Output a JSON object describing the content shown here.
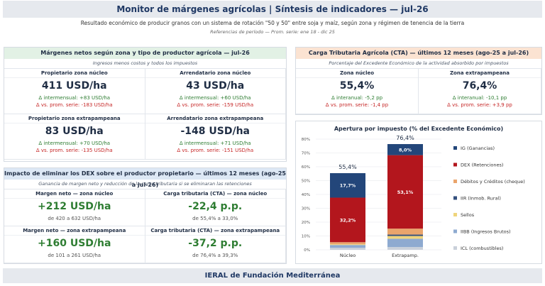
{
  "header": {
    "title": "Monitor de márgenes agrícolas  |  Síntesis de indicadores  —  jul-26",
    "subtitle": "Resultado económico de producir granos con un sistema de rotación \"50 y 50\" entre soja y maíz, según zona y régimen de tenencia de la tierra",
    "reference": "Referencias de período  —  Prom. serie: ene 18 - dic 25"
  },
  "margins": {
    "title": "Márgenes netos según zona y tipo de productor agrícola  —  jul-26",
    "subtitle": "Ingresos menos costos y todos los impuestos",
    "cells": [
      {
        "label": "Propietario zona núcleo",
        "value": "411 USD/ha",
        "delta_month": "Δ intermensual: +83 USD/ha",
        "delta_series": "Δ vs. prom. serie: -183 USD/ha"
      },
      {
        "label": "Arrendatario zona núcleo",
        "value": "43 USD/ha",
        "delta_month": "Δ intermensual: +60 USD/ha",
        "delta_series": "Δ vs. prom. serie: -159 USD/ha"
      },
      {
        "label": "Propietario zona extrapampeana",
        "value": "83 USD/ha",
        "delta_month": "Δ intermensual: +70 USD/ha",
        "delta_series": "Δ vs. prom. serie: -135 USD/ha"
      },
      {
        "label": "Arrendatario zona extrapampeana",
        "value": "-148 USD/ha",
        "delta_month": "Δ intermensual: +71 USD/ha",
        "delta_series": "Δ vs. prom. serie: -151 USD/ha"
      }
    ]
  },
  "dex": {
    "title": "Impacto de eliminar los DEX sobre el productor propietario  —  últimos 12 meses (ago-25 a jul-26)",
    "subtitle": "Ganancia de margen neto y reducción de la carga tributaria si se eliminaran las retenciones",
    "cells": [
      {
        "label": "Margen neto — zona núcleo",
        "value": "+212 USD/ha",
        "detail": "de 420 a 632 USD/ha"
      },
      {
        "label": "Carga tributaria (CTA) — zona núcleo",
        "value": "-22,4 p.p.",
        "detail": "de 55,4% a 33,0%"
      },
      {
        "label": "Margen neto — zona extrapampeana",
        "value": "+160 USD/ha",
        "detail": "de 101 a 261 USD/ha"
      },
      {
        "label": "Carga tributaria (CTA) — zona extrapampeana",
        "value": "-37,2 p.p.",
        "detail": "de 76,4% a 39,3%"
      }
    ]
  },
  "cta": {
    "title": "Carga Tributaria Agrícola (CTA)  —  últimos 12 meses (ago-25 a jul-26)",
    "subtitle": "Porcentaje del Excedente Económico de la actividad absorbido por impuestos",
    "cells": [
      {
        "label": "Zona núcleo",
        "value": "55,4%",
        "delta_year": "Δ interanual: -5,2 pp",
        "delta_series": "Δ vs. prom. serie: -1,4 pp"
      },
      {
        "label": "Zona extrapampeana",
        "value": "76,4%",
        "delta_year": "Δ interanual: -10,1 pp",
        "delta_series": "Δ vs. prom. serie: +3,9 pp"
      }
    ]
  },
  "chart_data": {
    "type": "stacked_bar",
    "title": "Apertura por impuesto (% del Excedente Económico)",
    "categories": [
      "Núcleo",
      "Extrapamp."
    ],
    "total_labels": [
      "55,4%",
      "76,4%"
    ],
    "ylim": [
      0,
      80
    ],
    "yticks": [
      {
        "value": 0,
        "label": "0%"
      },
      {
        "value": 10,
        "label": "10%"
      },
      {
        "value": 20,
        "label": "20%"
      },
      {
        "value": 30,
        "label": "30%"
      },
      {
        "value": 40,
        "label": "40%"
      },
      {
        "value": 50,
        "label": "50%"
      },
      {
        "value": 60,
        "label": "60%"
      },
      {
        "value": 70,
        "label": "70%"
      },
      {
        "value": 80,
        "label": "80%"
      }
    ],
    "grid": true,
    "series": [
      {
        "name": "ICL (combustibles)",
        "color": "#c9d0da",
        "values": [
          1.5,
          2
        ]
      },
      {
        "name": "IIBB (Ingresos Brutos)",
        "color": "#8eaad0",
        "values": [
          2,
          6
        ]
      },
      {
        "name": "Sellos",
        "color": "#efd47c",
        "values": [
          0.5,
          2
        ]
      },
      {
        "name": "IIR (Inmob. Rural)",
        "color": "#34507e",
        "values": [
          0,
          1
        ]
      },
      {
        "name": "Débitos y Créditos (cheque)",
        "color": "#eaa56c",
        "values": [
          1.5,
          4.3
        ]
      },
      {
        "name": "DEX (Retenciones)",
        "color": "#b3161d",
        "values": [
          32.2,
          53.1
        ],
        "value_labels": [
          "32,2%",
          "53,1%"
        ]
      },
      {
        "name": "IG (Ganancias)",
        "color": "#23467a",
        "values": [
          17.7,
          8.0
        ],
        "value_labels": [
          "17,7%",
          "8,0%"
        ]
      }
    ]
  },
  "footer": {
    "text": "IERAL de Fundación Mediterránea"
  }
}
